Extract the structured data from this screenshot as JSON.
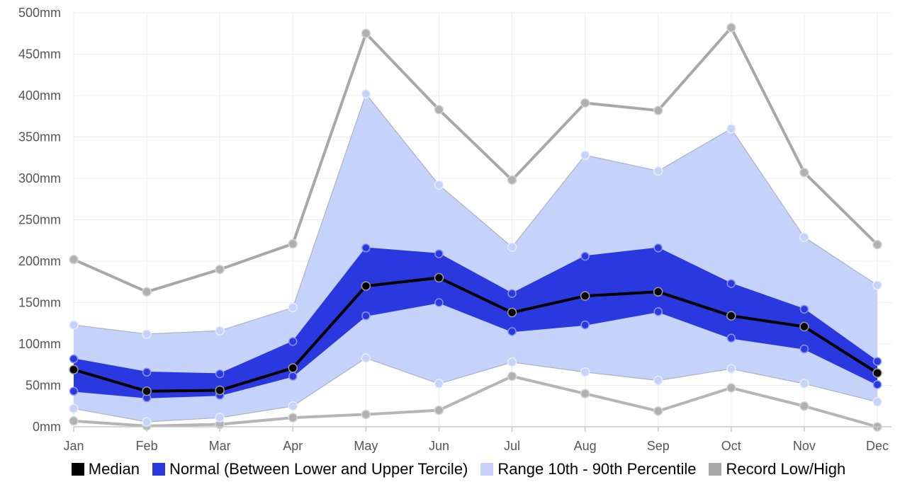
{
  "chart_data": {
    "type": "area",
    "categories": [
      "Jan",
      "Feb",
      "Mar",
      "Apr",
      "May",
      "Jun",
      "Jul",
      "Aug",
      "Sep",
      "Oct",
      "Nov",
      "Dec"
    ],
    "y_ticks": [
      "0mm",
      "50mm",
      "100mm",
      "150mm",
      "200mm",
      "250mm",
      "300mm",
      "350mm",
      "400mm",
      "450mm",
      "500mm"
    ],
    "ylim": [
      0,
      500
    ],
    "unit": "mm",
    "grid": true,
    "legend_position": "bottom",
    "series": [
      {
        "name": "Record Low/High",
        "role": "record_high",
        "color": "#a8a8a8",
        "values": [
          202,
          163,
          190,
          221,
          475,
          383,
          298,
          391,
          382,
          482,
          307,
          220
        ]
      },
      {
        "name": "Record Low/High",
        "role": "record_low",
        "color": "#a8a8a8",
        "values": [
          7,
          1,
          3,
          11,
          15,
          20,
          61,
          40,
          19,
          47,
          25,
          0
        ]
      },
      {
        "name": "Range 10th - 90th Percentile",
        "role": "p90",
        "color": "#c5d3fa",
        "values": [
          123,
          112,
          116,
          144,
          402,
          292,
          217,
          328,
          309,
          360,
          229,
          171
        ]
      },
      {
        "name": "Range 10th - 90th Percentile",
        "role": "p10",
        "color": "#c5d3fa",
        "values": [
          22,
          6,
          11,
          25,
          83,
          52,
          78,
          66,
          56,
          70,
          52,
          30
        ]
      },
      {
        "name": "Normal (Between Lower and Upper Tercile)",
        "role": "upper_tercile",
        "color": "#2a38df",
        "values": [
          82,
          66,
          64,
          103,
          216,
          209,
          161,
          206,
          216,
          173,
          142,
          79
        ]
      },
      {
        "name": "Normal (Between Lower and Upper Tercile)",
        "role": "lower_tercile",
        "color": "#2a38df",
        "values": [
          43,
          35,
          38,
          61,
          134,
          150,
          115,
          123,
          139,
          107,
          94,
          51
        ]
      },
      {
        "name": "Median",
        "role": "median",
        "color": "#000000",
        "values": [
          69,
          43,
          44,
          71,
          170,
          180,
          138,
          158,
          163,
          134,
          121,
          65
        ]
      }
    ],
    "legend": [
      {
        "label": "Median",
        "color": "#000000"
      },
      {
        "label": "Normal (Between Lower and Upper Tercile)",
        "color": "#2a38df"
      },
      {
        "label": "Range 10th - 90th Percentile",
        "color": "#c5d3fa"
      },
      {
        "label": "Record Low/High",
        "color": "#a8a8a8"
      }
    ]
  }
}
